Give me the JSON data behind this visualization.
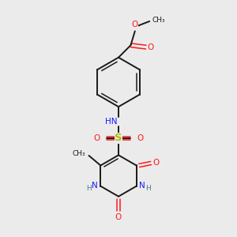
{
  "bg_color": "#ebebeb",
  "bond_color": "#1a1a1a",
  "n_color": "#1919ff",
  "o_color": "#ff1919",
  "s_color": "#b8b800",
  "h_color": "#408080",
  "figsize": [
    3.0,
    3.0
  ],
  "dpi": 100,
  "xlim": [
    0,
    10
  ],
  "ylim": [
    0,
    10
  ]
}
